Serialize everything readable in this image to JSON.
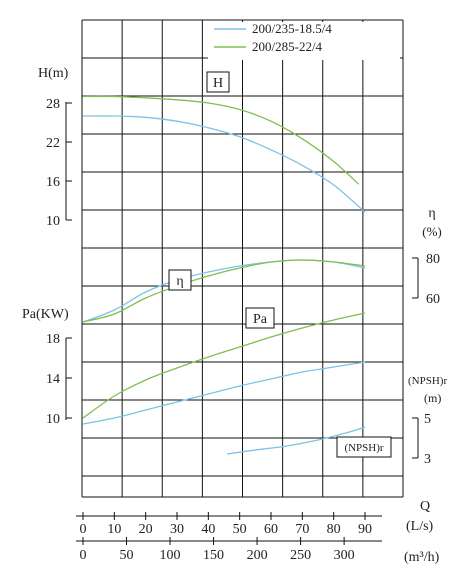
{
  "chart_data": {
    "type": "line",
    "legend_position": "top-right",
    "colors": {
      "series_a": "#7cc3e6",
      "series_b": "#7fbf4d",
      "grid": "#111111"
    },
    "legend": [
      "200/235-18.5/4",
      "200/285-22/4"
    ],
    "x_axes": {
      "flow_ls": {
        "label": "(L/s)",
        "ticks": [
          "0",
          "10",
          "20",
          "30",
          "40",
          "50",
          "60",
          "70",
          "80",
          "90"
        ],
        "range": [
          0,
          90
        ]
      },
      "flow_m3h": {
        "label": "(m³/h)",
        "ticks": [
          "0",
          "50",
          "100",
          "150",
          "200",
          "250",
          "300"
        ],
        "range": [
          0,
          324
        ]
      },
      "q_label": "Q"
    },
    "y_axes": {
      "head": {
        "label": "H(m)",
        "ticks": [
          "28",
          "22",
          "16",
          "10"
        ]
      },
      "efficiency": {
        "label_symbol": "η",
        "label_unit": "(%)",
        "ticks": [
          "80",
          "60"
        ]
      },
      "power": {
        "label": "Pa(KW)",
        "ticks": [
          "18",
          "14",
          "10"
        ]
      },
      "npsh": {
        "label": "(NPSH)r",
        "label_unit": "(m)",
        "ticks": [
          "5",
          "3"
        ]
      }
    },
    "curve_labels": {
      "head": "H",
      "efficiency": "η",
      "power": "Pa",
      "npsh": "(NPSH)r"
    },
    "series": [
      {
        "name": "200/235-18.5/4",
        "curve": "head",
        "x": [
          0,
          10,
          20,
          30,
          40,
          50,
          60,
          70,
          80,
          90
        ],
        "y": [
          26,
          26,
          25.8,
          25.2,
          24.2,
          22.8,
          20.8,
          18.4,
          15.4,
          11.2
        ]
      },
      {
        "name": "200/285-22/4",
        "curve": "head",
        "x": [
          0,
          10,
          20,
          30,
          40,
          50,
          60,
          70,
          80,
          88
        ],
        "y": [
          29,
          29,
          28.8,
          28.5,
          28,
          27,
          25.2,
          22.5,
          19,
          15.5
        ]
      },
      {
        "name": "200/235-18.5/4",
        "curve": "efficiency",
        "x": [
          0,
          10,
          20,
          30,
          40,
          50,
          60,
          70,
          80,
          90
        ],
        "y": [
          48,
          54,
          63,
          69,
          73,
          76,
          78,
          79,
          78,
          75
        ]
      },
      {
        "name": "200/285-22/4",
        "curve": "efficiency",
        "x": [
          0,
          10,
          20,
          30,
          40,
          50,
          60,
          70,
          80,
          90
        ],
        "y": [
          48,
          52,
          60,
          66,
          71,
          75,
          78,
          79,
          78,
          76
        ]
      },
      {
        "name": "200/235-18.5/4",
        "curve": "power",
        "x": [
          0,
          10,
          20,
          30,
          40,
          50,
          60,
          70,
          80,
          90
        ],
        "y": [
          9.4,
          10,
          10.8,
          11.6,
          12.4,
          13.2,
          13.9,
          14.6,
          15.1,
          15.6
        ]
      },
      {
        "name": "200/285-22/4",
        "curve": "power",
        "x": [
          0,
          10,
          20,
          30,
          40,
          50,
          60,
          70,
          80,
          90
        ],
        "y": [
          10,
          12.2,
          13.8,
          15,
          16.1,
          17.1,
          18.1,
          19,
          19.8,
          20.5
        ]
      },
      {
        "name": "200/235-18.5/4",
        "curve": "npsh",
        "x": [
          46,
          55,
          65,
          75,
          85,
          90
        ],
        "y": [
          3.2,
          3.4,
          3.6,
          3.9,
          4.3,
          4.55
        ]
      }
    ]
  }
}
